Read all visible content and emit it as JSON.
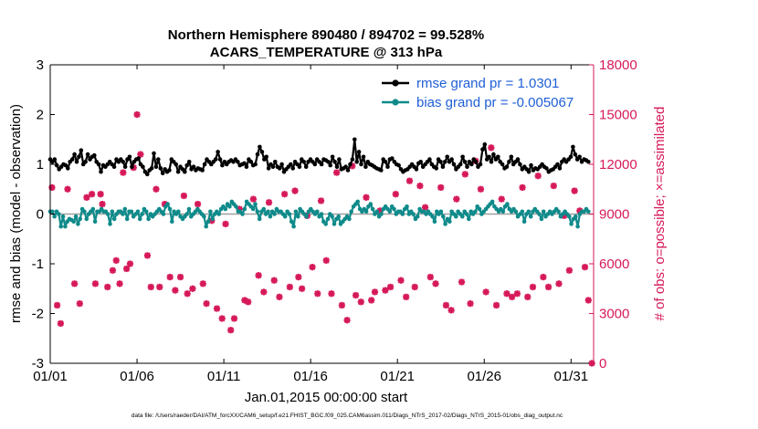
{
  "chart_data": {
    "type": "line",
    "title": "Northern Hemisphere 890480 / 894702 = 99.528%",
    "subtitle": "ACARS_TEMPERATURE @ 313 hPa",
    "xlabel": "Jan.01,2015 00:00:00 start",
    "ylabel_left": "rmse and bias (model - observation)",
    "ylabel_right": "# of obs: o=possible; ×=assimilated",
    "footer": "data file: /Users/raeder/DAI/ATM_forcXX/CAM6_setup/f.e21.FHIST_BGC.f09_025.CAM6assim.011/Diags_NTrS_2017-02/Diags_NTrS_2015-01/obs_diag_output.nc",
    "x_tick_labels": [
      "01/01",
      "01/06",
      "01/11",
      "01/16",
      "01/21",
      "01/26",
      "01/31"
    ],
    "x_tick_values": [
      0,
      5,
      10,
      15,
      20,
      25,
      30
    ],
    "xlim": [
      0,
      31.3
    ],
    "ylim_left": [
      -3,
      3
    ],
    "yticks_left": [
      "3",
      "2",
      "1",
      "0",
      "-1",
      "-2",
      "-3"
    ],
    "ylim_right": [
      0,
      18000
    ],
    "yticks_right": [
      "18000",
      "15000",
      "12000",
      "9000",
      "6000",
      "3000",
      "0"
    ],
    "colors": {
      "rmse": "#000000",
      "bias": "#0f8a8a",
      "obs": "#d6195a",
      "zero": "#a0a0a0",
      "legend_text": "#1f5fd6"
    },
    "series": [
      {
        "name": "rmse grand pr = 1.0301",
        "key": "rmse",
        "values": [
          1.1,
          1.05,
          1.1,
          0.98,
          0.9,
          0.95,
          1.0,
          0.98,
          0.92,
          1.05,
          1.1,
          1.2,
          1.05,
          1.15,
          1.28,
          1.0,
          1.05,
          1.2,
          1.1,
          1.15,
          1.18,
          1.05,
          1.0,
          0.85,
          0.98,
          0.95,
          1.0,
          1.05,
          1.0,
          0.95,
          1.1,
          1.05,
          1.1,
          1.05,
          0.95,
          1.1,
          1.15,
          0.95,
          1.05,
          1.1,
          1.12,
          1.0,
          0.95,
          0.85,
          0.8,
          0.88,
          0.92,
          1.22,
          0.95,
          1.1,
          0.92,
          0.82,
          0.9,
          0.85,
          0.88,
          1.1,
          1.05,
          1.0,
          0.85,
          0.95,
          0.9,
          0.85,
          0.98,
          1.05,
          0.9,
          0.95,
          0.88,
          0.92,
          0.9,
          0.88,
          1.0,
          1.1,
          1.05,
          1.0,
          1.05,
          1.1,
          1.25,
          1.1,
          0.98,
          1.05,
          1.0,
          1.05,
          1.08,
          1.05,
          1.1,
          1.05,
          0.98,
          1.0,
          1.02,
          0.95,
          1.1,
          1.05,
          0.98,
          1.0,
          1.2,
          1.35,
          1.25,
          1.1,
          1.15,
          0.92,
          1.0,
          0.95,
          1.05,
          0.95,
          0.92,
          1.0,
          0.85,
          0.9,
          0.95,
          1.0,
          0.92,
          1.05,
          1.0,
          0.95,
          1.1,
          1.05,
          0.95,
          1.05,
          1.1,
          1.05,
          1.0,
          1.1,
          1.05,
          1.0,
          1.1,
          1.08,
          1.05,
          0.98,
          1.15,
          1.05,
          0.95,
          1.1,
          0.9,
          0.92,
          0.95,
          0.88,
          1.0,
          1.1,
          1.5,
          1.05,
          1.25,
          1.0,
          1.15,
          0.95,
          1.05,
          1.0,
          0.98,
          0.95,
          0.92,
          0.9,
          0.88,
          1.1,
          1.05,
          0.95,
          1.1,
          1.12,
          1.05,
          1.0,
          0.98,
          0.9,
          0.85,
          0.88,
          0.9,
          0.95,
          1.0,
          0.95,
          0.9,
          1.02,
          1.05,
          0.95,
          1.0,
          1.05,
          1.1,
          1.0,
          0.95,
          0.92,
          1.1,
          1.05,
          0.95,
          1.05,
          1.15,
          1.05,
          1.1,
          1.0,
          0.9,
          0.95,
          1.0,
          1.15,
          1.05,
          0.95,
          1.05,
          1.0,
          1.1,
          1.05,
          0.95,
          1.0,
          1.3,
          1.4,
          1.1,
          1.15,
          1.05,
          1.2,
          1.1,
          1.15,
          1.05,
          1.0,
          0.92,
          0.95,
          1.05,
          1.15,
          1.0,
          1.05,
          1.1,
          1.0,
          0.9,
          0.95,
          0.9,
          0.85,
          0.98,
          0.88,
          0.92,
          0.9,
          0.95,
          1.0,
          0.95,
          0.92,
          0.85,
          0.88,
          0.9,
          0.95,
          1.0,
          0.92,
          1.05,
          1.1,
          1.05,
          1.1,
          1.15,
          1.35,
          1.2,
          1.1,
          1.15,
          1.05,
          1.1,
          1.08,
          1.05
        ]
      },
      {
        "name": "bias grand pr = -0.005067",
        "key": "bias",
        "values": [
          0.05,
          0.05,
          -0.05,
          0.05,
          0.0,
          -0.25,
          -0.05,
          -0.25,
          -0.15,
          -0.1,
          -0.12,
          -0.15,
          -0.05,
          -0.2,
          -0.1,
          0.1,
          0.05,
          -0.1,
          0.0,
          0.05,
          0.1,
          -0.15,
          0.05,
          0.05,
          0.1,
          0.05,
          0.05,
          0.0,
          -0.2,
          0.05,
          -0.1,
          0.0,
          0.05,
          0.05,
          0.0,
          0.1,
          -0.1,
          0.05,
          0.05,
          -0.05,
          0.0,
          0.05,
          -0.1,
          0.0,
          0.1,
          0.05,
          -0.1,
          0.0,
          -0.05,
          0.0,
          0.05,
          0.1,
          0.05,
          0.0,
          0.15,
          0.2,
          0.1,
          -0.15,
          0.05,
          0.0,
          0.05,
          -0.05,
          -0.1,
          -0.05,
          0.0,
          0.1,
          -0.05,
          0.0,
          0.05,
          0.1,
          0.05,
          0.0,
          -0.05,
          -0.25,
          -0.15,
          0.05,
          -0.1,
          0.0,
          0.05,
          0.0,
          0.1,
          0.15,
          0.1,
          0.2,
          0.15,
          0.25,
          0.2,
          0.15,
          0.05,
          0.05,
          0.0,
          0.1,
          0.25,
          0.2,
          0.15,
          0.1,
          0.2,
          0.05,
          -0.1,
          0.05,
          0.1,
          0.0,
          0.05,
          -0.05,
          0.05,
          0.0,
          0.1,
          0.05,
          0.05,
          0.0,
          -0.05,
          0.05,
          0.0,
          -0.15,
          -0.25,
          0.05,
          -0.05,
          0.1,
          0.05,
          0.0,
          -0.05,
          0.05,
          0.1,
          0.05,
          0.0,
          0.05,
          -0.05,
          0.0,
          -0.15,
          -0.2,
          -0.1,
          0.0,
          -0.05,
          -0.2,
          -0.1,
          -0.05,
          -0.2,
          -0.15,
          -0.1,
          -0.05,
          -0.1,
          0.05,
          0.15,
          0.2,
          0.25,
          0.1,
          0.05,
          0.1,
          0.05,
          0.15,
          0.2,
          0.1,
          0.0,
          0.05,
          -0.05,
          0.0,
          0.1,
          0.15,
          0.1,
          0.05,
          0.15,
          0.1,
          0.0,
          0.05,
          0.05,
          0.0,
          0.1,
          0.15,
          0.0,
          0.05,
          0.0,
          -0.1,
          -0.05,
          0.1,
          0.05,
          0.05,
          0.0,
          0.05,
          0.0,
          -0.05,
          -0.15,
          0.05,
          0.0,
          0.05,
          -0.05,
          -0.2,
          -0.1,
          -0.15,
          0.05,
          0.0,
          -0.05,
          0.05,
          0.0,
          -0.05,
          0.05,
          0.0,
          -0.1,
          0.05,
          0.0,
          0.05,
          0.15,
          0.1,
          0.0,
          0.05,
          0.1,
          0.15,
          0.2,
          0.25,
          0.15,
          0.1,
          0.05,
          0.1,
          0.05,
          0.15,
          0.2,
          0.1,
          0.05,
          0.1,
          0.05,
          -0.05,
          0.0,
          0.05,
          -0.15,
          0.0,
          0.05,
          -0.05,
          0.05,
          0.1,
          0.05,
          0.0,
          -0.1,
          0.05,
          -0.05,
          0.0,
          0.05,
          0.0,
          0.05,
          0.1,
          0.05,
          -0.05,
          0.0,
          0.05,
          0.0,
          -0.05,
          -0.2,
          -0.1,
          -0.05,
          -0.25,
          0.0,
          0.05,
          0.05,
          0.1,
          0.05
        ]
      },
      {
        "name": "# of obs (assimilated)",
        "key": "obs",
        "axis": "right",
        "x": [
          0.1,
          0.4,
          0.6,
          1.0,
          1.4,
          1.7,
          2.1,
          2.4,
          2.6,
          2.9,
          3.0,
          3.3,
          3.6,
          3.8,
          4.0,
          4.2,
          4.4,
          4.6,
          4.8,
          5.0,
          5.2,
          5.6,
          5.8,
          6.1,
          6.3,
          6.6,
          6.9,
          7.2,
          7.5,
          7.7,
          7.9,
          8.2,
          8.5,
          8.8,
          9.0,
          9.3,
          9.6,
          9.9,
          10.1,
          10.4,
          10.6,
          10.9,
          11.2,
          11.4,
          11.7,
          12.0,
          12.3,
          12.6,
          12.9,
          13.2,
          13.5,
          13.8,
          14.1,
          14.3,
          14.5,
          14.8,
          15.1,
          15.4,
          15.6,
          15.9,
          16.2,
          16.5,
          16.8,
          17.1,
          17.4,
          17.6,
          17.9,
          18.2,
          18.5,
          18.7,
          19.0,
          19.3,
          19.6,
          19.9,
          20.2,
          20.5,
          20.7,
          21.0,
          21.3,
          21.6,
          21.9,
          22.2,
          22.5,
          22.8,
          23.1,
          23.4,
          23.7,
          23.9,
          24.2,
          24.5,
          24.8,
          25.1,
          25.4,
          25.7,
          26.0,
          26.3,
          26.6,
          26.9,
          27.2,
          27.5,
          27.8,
          28.1,
          28.4,
          28.7,
          29.0,
          29.3,
          29.6,
          29.9,
          30.2,
          30.5,
          30.8,
          31.0,
          31.2
        ],
        "values": [
          10600,
          3500,
          2400,
          10500,
          4800,
          3600,
          10000,
          10200,
          4800,
          10200,
          9600,
          4600,
          5600,
          6200,
          4800,
          11500,
          5700,
          6000,
          11800,
          15000,
          12600,
          6500,
          4600,
          10500,
          4600,
          9600,
          5200,
          4400,
          5200,
          10100,
          4200,
          4500,
          9600,
          4800,
          3600,
          8600,
          3300,
          2700,
          8400,
          2000,
          2700,
          9300,
          3800,
          3700,
          9900,
          5300,
          4300,
          9700,
          5000,
          4000,
          10200,
          4600,
          10400,
          5200,
          4500,
          8900,
          5800,
          4200,
          9800,
          6200,
          4200,
          11500,
          3500,
          2600,
          11900,
          4100,
          3700,
          10000,
          3800,
          4300,
          9200,
          4400,
          4600,
          10200,
          5000,
          4000,
          11000,
          4600,
          10700,
          9400,
          5200,
          4800,
          10600,
          3500,
          3200,
          9900,
          4900,
          11400,
          3600,
          12200,
          10500,
          4300,
          13000,
          3500,
          9900,
          4200,
          4000,
          4200,
          10600,
          4000,
          4600,
          11300,
          5200,
          4600,
          10700,
          4800,
          8900,
          5600,
          10400,
          9200,
          5800,
          3800,
          0
        ]
      }
    ],
    "legend_position": "top-right"
  }
}
